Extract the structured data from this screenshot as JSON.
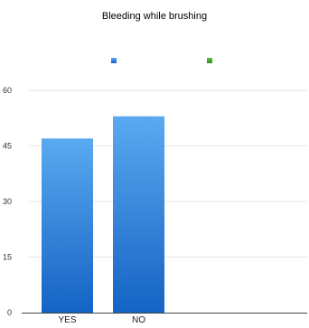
{
  "chart_data": {
    "type": "bar",
    "title": "Bleeding while brushing",
    "categories": [
      "YES",
      "NO"
    ],
    "series": [
      {
        "values": [
          47,
          53
        ],
        "color": "#2a86e0"
      }
    ],
    "legend_markers": [
      {
        "color": "#2a86e0"
      },
      {
        "color": "#3a9a2a"
      }
    ],
    "ylim": [
      0,
      60
    ],
    "yticks": [
      0,
      15,
      30,
      45,
      60
    ],
    "grid": true,
    "legend_position": "top"
  }
}
